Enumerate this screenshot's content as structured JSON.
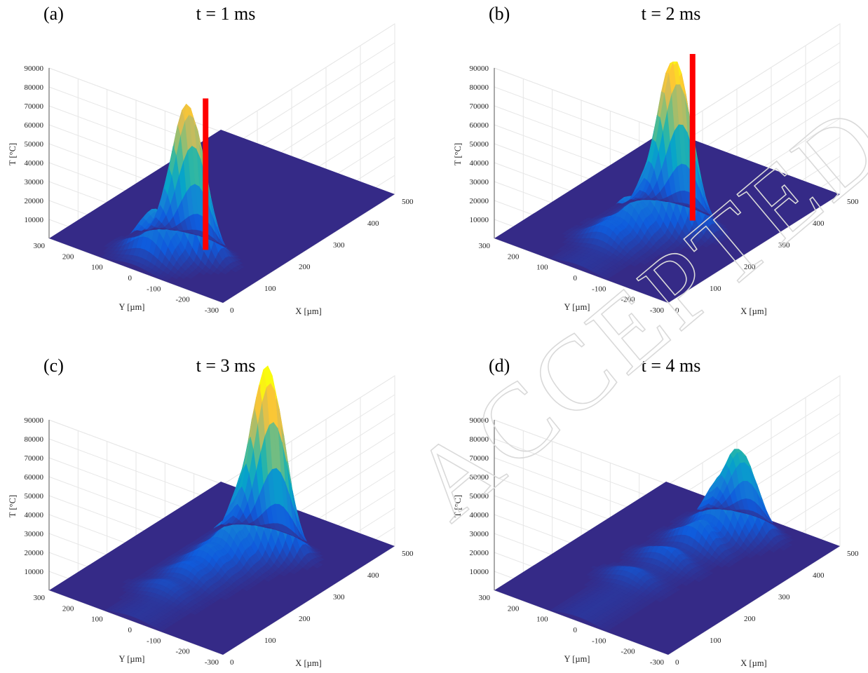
{
  "chart_data": [
    {
      "type": "surface3d",
      "panel_label": "(a)",
      "time_label": "t = 1 ms",
      "zlabel": "T [°C]",
      "xlabel": "X [µm]",
      "ylabel": "Y [µm]",
      "zticks": [
        10000,
        20000,
        30000,
        40000,
        50000,
        60000,
        70000,
        80000,
        90000
      ],
      "xticks": [
        0,
        100,
        200,
        300,
        400,
        500
      ],
      "yticks": [
        300,
        200,
        100,
        0,
        -100,
        -200,
        -300
      ],
      "xlim": [
        0,
        500
      ],
      "ylim": [
        -300,
        300
      ],
      "zlim": [
        0,
        90000
      ],
      "grid": true,
      "colormap": [
        "#352a87",
        "#0f5cdd",
        "#1481d6",
        "#06a4ca",
        "#2eb7a4",
        "#87bf77",
        "#d1bb59",
        "#fec832",
        "#f9fb0e"
      ],
      "peaks": [
        {
          "x": 110,
          "y": -50,
          "z": 77000
        },
        {
          "x": 55,
          "y": 0,
          "z": 23000
        }
      ],
      "laser_marker": {
        "x": 135,
        "y": -80,
        "z": 80000,
        "color": "#ff0000"
      }
    },
    {
      "type": "surface3d",
      "panel_label": "(b)",
      "time_label": "t = 2 ms",
      "zlabel": "T [°C]",
      "xlabel": "X [µm]",
      "ylabel": "Y [µm]",
      "zticks": [
        10000,
        20000,
        30000,
        40000,
        50000,
        60000,
        70000,
        80000,
        90000
      ],
      "xticks": [
        0,
        100,
        200,
        300,
        400,
        500
      ],
      "yticks": [
        300,
        200,
        100,
        0,
        -100,
        -200,
        -300
      ],
      "xlim": [
        0,
        500
      ],
      "ylim": [
        -300,
        300
      ],
      "zlim": [
        0,
        90000
      ],
      "grid": true,
      "colormap": [
        "#352a87",
        "#0f5cdd",
        "#1481d6",
        "#06a4ca",
        "#2eb7a4",
        "#87bf77",
        "#d1bb59",
        "#fec832",
        "#f9fb0e"
      ],
      "peaks": [
        {
          "x": 240,
          "y": -40,
          "z": 84000
        },
        {
          "x": 200,
          "y": -20,
          "z": 30000
        },
        {
          "x": 150,
          "y": 10,
          "z": 18000
        },
        {
          "x": 100,
          "y": 30,
          "z": 10000
        }
      ],
      "laser_marker": {
        "x": 265,
        "y": -70,
        "z": 88000,
        "color": "#ff0000"
      }
    },
    {
      "type": "surface3d",
      "panel_label": "(c)",
      "time_label": "t = 3 ms",
      "zlabel": "T [°C]",
      "xlabel": "X [µm]",
      "ylabel": "Y [µm]",
      "zticks": [
        10000,
        20000,
        30000,
        40000,
        50000,
        60000,
        70000,
        80000,
        90000
      ],
      "xticks": [
        0,
        100,
        200,
        300,
        400,
        500
      ],
      "yticks": [
        300,
        200,
        100,
        0,
        -100,
        -200,
        -300
      ],
      "xlim": [
        0,
        500
      ],
      "ylim": [
        -300,
        300
      ],
      "zlim": [
        0,
        90000
      ],
      "grid": true,
      "colormap": [
        "#352a87",
        "#0f5cdd",
        "#1481d6",
        "#06a4ca",
        "#2eb7a4",
        "#87bf77",
        "#d1bb59",
        "#fec832",
        "#f9fb0e"
      ],
      "peaks": [
        {
          "x": 360,
          "y": -30,
          "z": 91000
        },
        {
          "x": 320,
          "y": -10,
          "z": 37000
        },
        {
          "x": 270,
          "y": 5,
          "z": 19000
        },
        {
          "x": 220,
          "y": 15,
          "z": 12000
        },
        {
          "x": 170,
          "y": 25,
          "z": 8000
        },
        {
          "x": 110,
          "y": 40,
          "z": 5000
        }
      ],
      "laser_marker": null
    },
    {
      "type": "surface3d",
      "panel_label": "(d)",
      "time_label": "t = 4 ms",
      "zlabel": "T [°C]",
      "xlabel": "X [µm]",
      "ylabel": "Y [µm]",
      "zticks": [
        10000,
        20000,
        30000,
        40000,
        50000,
        60000,
        70000,
        80000,
        90000
      ],
      "xticks": [
        0,
        100,
        200,
        300,
        400,
        500
      ],
      "yticks": [
        300,
        200,
        100,
        0,
        -100,
        -200,
        -300
      ],
      "xlim": [
        0,
        500
      ],
      "ylim": [
        -300,
        300
      ],
      "zlim": [
        0,
        90000
      ],
      "grid": true,
      "colormap": [
        "#352a87",
        "#0f5cdd",
        "#1481d6",
        "#06a4ca",
        "#2eb7a4",
        "#87bf77",
        "#d1bb59",
        "#fec832",
        "#f9fb0e"
      ],
      "peaks": [
        {
          "x": 440,
          "y": -30,
          "z": 40000
        },
        {
          "x": 400,
          "y": -10,
          "z": 25000
        },
        {
          "x": 340,
          "y": 5,
          "z": 15000
        },
        {
          "x": 260,
          "y": 20,
          "z": 9000
        },
        {
          "x": 170,
          "y": 35,
          "z": 6000
        }
      ],
      "laser_marker": null
    }
  ],
  "watermark": "ACCEPTED MANUSCRIPT"
}
